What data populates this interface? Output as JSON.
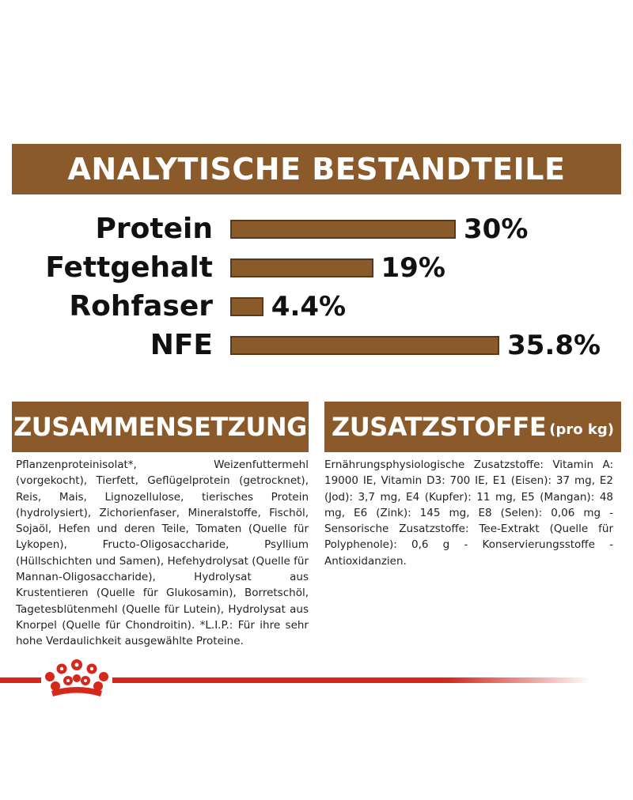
{
  "analytics": {
    "title": "ANALYTISCHE BESTANDTEILE",
    "nutrients": [
      {
        "label": "Protein",
        "value_text": "30%",
        "percent": 30
      },
      {
        "label": "Fettgehalt",
        "value_text": "19%",
        "percent": 19
      },
      {
        "label": "Rohfaser",
        "value_text": "4.4%",
        "percent": 4.4
      },
      {
        "label": "NFE",
        "value_text": "35.8%",
        "percent": 35.8
      }
    ]
  },
  "composition": {
    "title": "ZUSAMMENSETZUNG",
    "text": "Pflanzenproteinisolat*, Weizenfuttermehl (vorgekocht), Tierfett, Geflügelprotein (getrocknet), Reis, Mais, Lignozellulose, tierisches Protein (hydrolysiert), Zichorienfaser, Mineralstoffe, Fischöl, Sojaöl, Hefen und deren Teile, Tomaten (Quelle für Lykopen), Fructo-Oligosaccharide, Psyllium (Hüllschichten und Samen), Hefehydrolysat (Quelle für Mannan-Oligosaccharide), Hydrolysat aus Krustentieren (Quelle für Glukosamin), Borretschöl, Tagetesblütenmehl (Quelle für Lutein), Hydrolysat aus Knorpel (Quelle für Chondroitin). *L.I.P.: Für ihre sehr hohe Verdaulichkeit ausgewählte Proteine."
  },
  "additives": {
    "title": "ZUSATZSTOFFE",
    "unit": "(pro kg)",
    "text": "Ernährungsphysiologische Zusatzstoffe: Vitamin A: 19000 IE, Vitamin D3: 700 IE, E1 (Eisen): 37 mg, E2 (Jod): 3,7 mg, E4 (Kupfer): 11 mg, E5 (Mangan): 48 mg, E6 (Zink): 145 mg, E8 (Selen): 0,06 mg - Sensorische Zusatzstoffe: Tee-Extrakt (Quelle für Polyphenole): 0,6 g - Konservierungsstoffe - Antioxidanzien."
  },
  "colors": {
    "brown": "#8b5a2b",
    "brand_red": "#d5281b"
  },
  "icons": {
    "brand_logo": "royal-crown-icon"
  }
}
